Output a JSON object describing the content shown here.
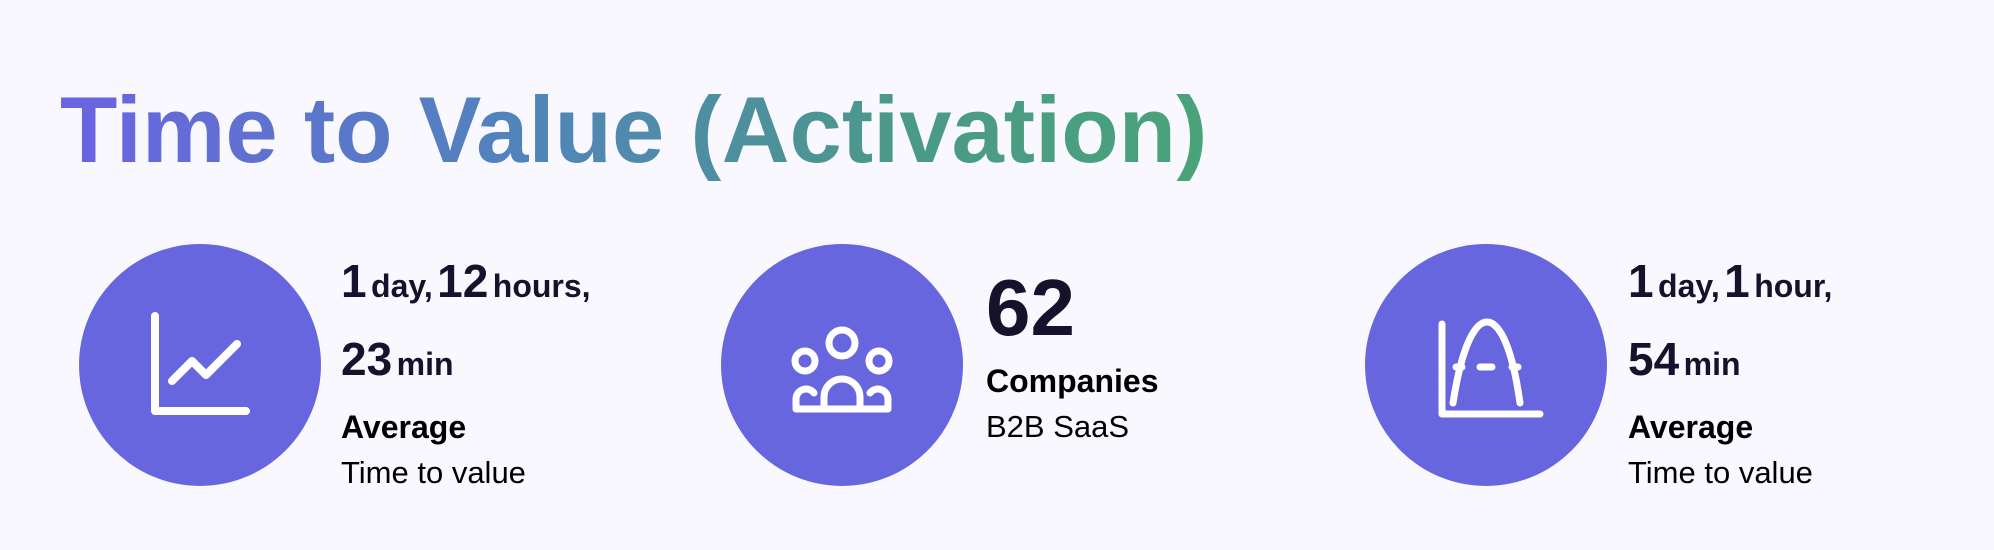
{
  "title": "Time to Value (Activation)",
  "colors": {
    "accent": "#6766df",
    "title_gradient_start": "#6a63e2",
    "title_gradient_end": "#4aa37a"
  },
  "cards": [
    {
      "icon": "line-chart-icon",
      "v1": "1",
      "u1": "day,",
      "v2": "12",
      "u2": "hours,",
      "v3": "23",
      "u3": "min",
      "label": "Average",
      "sub": "Time to value"
    },
    {
      "icon": "users-group-icon",
      "value": "62",
      "label": "Companies",
      "sub": "B2B SaaS"
    },
    {
      "icon": "bell-curve-chart-icon",
      "v1": "1",
      "u1": "day,",
      "v2": "1",
      "u2": "hour,",
      "v3": "54",
      "u3": "min",
      "label": "Average",
      "sub": "Time to value"
    }
  ]
}
